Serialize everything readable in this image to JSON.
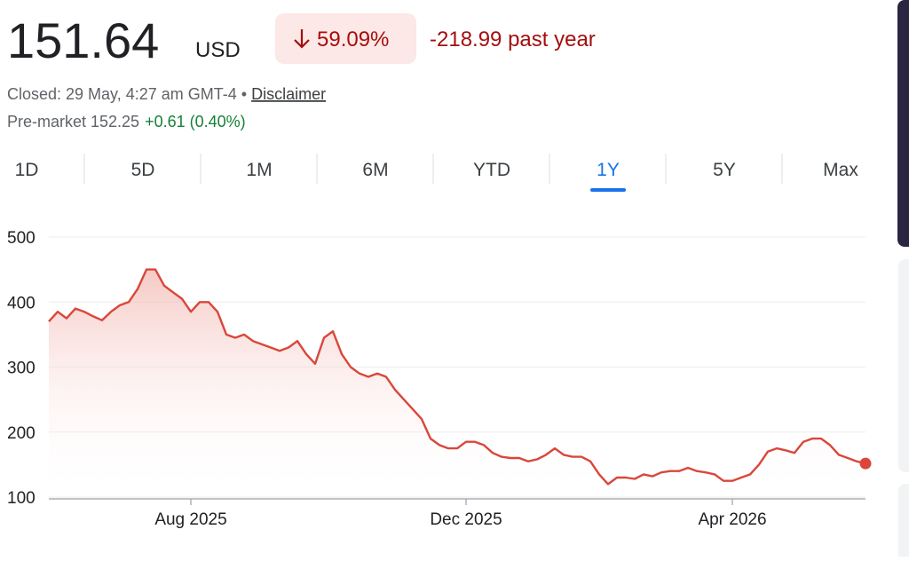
{
  "header": {
    "price": "151.64",
    "currency": "USD",
    "change_percent": "59.09%",
    "change": "-218.99 past year",
    "closed": "Closed: 29 May, 4:27 am GMT-4",
    "separator": "•",
    "disclaimer": "Disclaimer",
    "premarket": "Pre-market 152.25",
    "premarket_change": "+0.61 (0.40%)",
    "tabs": [
      "1D",
      "5D",
      "1M",
      "6M",
      "YTD",
      "1Y",
      "5Y",
      "Max"
    ],
    "selected_tab": "1Y"
  },
  "chart_data": {
    "type": "line",
    "color": "#d9473a",
    "grid": true,
    "categories": [
      null,
      null,
      null,
      null,
      null,
      null,
      null,
      null,
      null,
      null,
      null,
      null,
      null,
      null,
      null,
      null,
      "Aug 2025",
      null,
      null,
      null,
      null,
      null,
      null,
      null,
      null,
      null,
      null,
      null,
      null,
      null,
      null,
      null,
      null,
      null,
      null,
      null,
      null,
      null,
      null,
      null,
      null,
      null,
      null,
      null,
      null,
      null,
      null,
      "Dec 2025",
      null,
      null,
      null,
      null,
      null,
      null,
      null,
      null,
      null,
      null,
      null,
      null,
      null,
      null,
      null,
      null,
      null,
      null,
      null,
      null,
      null,
      null,
      null,
      null,
      null,
      null,
      null,
      null,
      null,
      "Apr 2026",
      null,
      null,
      null,
      null,
      null,
      null,
      null,
      null,
      null,
      null,
      null,
      null,
      null,
      null,
      null
    ],
    "values": [
      370,
      385,
      375,
      390,
      385,
      378,
      372,
      385,
      395,
      400,
      420,
      450,
      450,
      425,
      415,
      405,
      385,
      400,
      400,
      385,
      350,
      345,
      350,
      340,
      335,
      330,
      325,
      330,
      340,
      320,
      305,
      345,
      355,
      320,
      300,
      290,
      285,
      290,
      285,
      265,
      250,
      235,
      220,
      190,
      180,
      175,
      175,
      185,
      185,
      180,
      168,
      162,
      160,
      160,
      155,
      158,
      165,
      175,
      165,
      162,
      162,
      155,
      135,
      120,
      130,
      130,
      128,
      135,
      132,
      138,
      140,
      140,
      145,
      140,
      138,
      135,
      125,
      125,
      130,
      135,
      150,
      170,
      175,
      172,
      168,
      185,
      190,
      190,
      180,
      165,
      160,
      155,
      151.64
    ],
    "ylim": [
      100,
      500
    ],
    "yticks": [
      100,
      200,
      300,
      400,
      500
    ]
  }
}
